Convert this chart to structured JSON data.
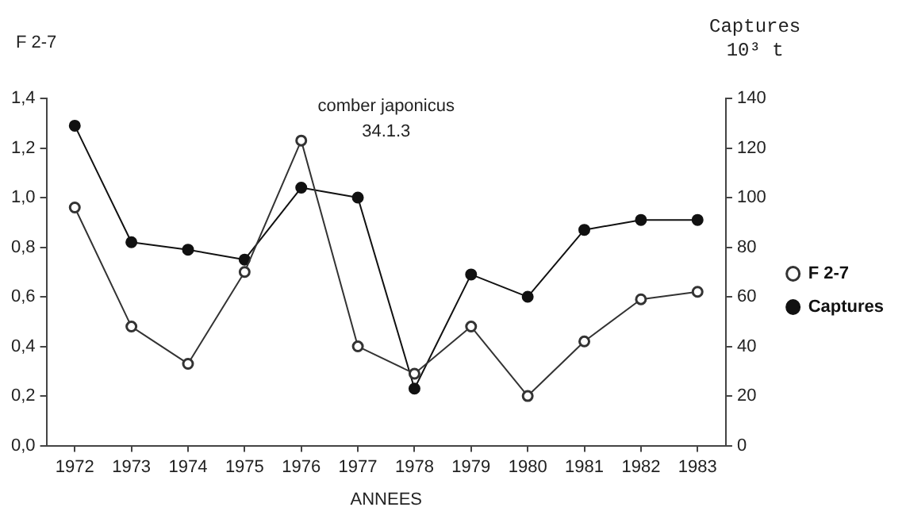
{
  "chart_data": {
    "type": "line",
    "title": "comber japonicus",
    "annotations": [
      "34.1.3"
    ],
    "xlabel": "ANNEES",
    "ylabel": "F 2-7",
    "y2label": "Captures\n10³ t",
    "categories": [
      "1972",
      "1973",
      "1974",
      "1975",
      "1976",
      "1977",
      "1978",
      "1979",
      "1980",
      "1981",
      "1982",
      "1983"
    ],
    "series": [
      {
        "name": "F 2-7",
        "color": "#333333",
        "marker": "circle",
        "values": [
          0.96,
          0.48,
          0.33,
          0.7,
          1.23,
          0.4,
          0.29,
          0.48,
          0.2,
          0.42,
          0.59,
          0.62
        ]
      },
      {
        "name": "Captures",
        "color": "#111111",
        "marker": "circle",
        "axis": "y2",
        "values": [
          129,
          82,
          79,
          75,
          104,
          100,
          23,
          69,
          60,
          87,
          91,
          91
        ]
      }
    ],
    "ylim": [
      0,
      1.4
    ],
    "yticks": [
      {
        "value": 0,
        "label": "0,0"
      },
      {
        "value": 0.2,
        "label": "0,2"
      },
      {
        "value": 0.4,
        "label": "0,4"
      },
      {
        "value": 0.6,
        "label": "0,6"
      },
      {
        "value": 0.8,
        "label": "0,8"
      },
      {
        "value": 1.0,
        "label": "1,0"
      },
      {
        "value": 1.2,
        "label": "1,2"
      },
      {
        "value": 1.4,
        "label": "1,4"
      }
    ],
    "y2lim": [
      0,
      140
    ],
    "y2ticks": [
      0,
      20,
      40,
      60,
      80,
      100,
      120,
      140
    ],
    "grid": false,
    "legend": "right",
    "line_style": "solid"
  }
}
